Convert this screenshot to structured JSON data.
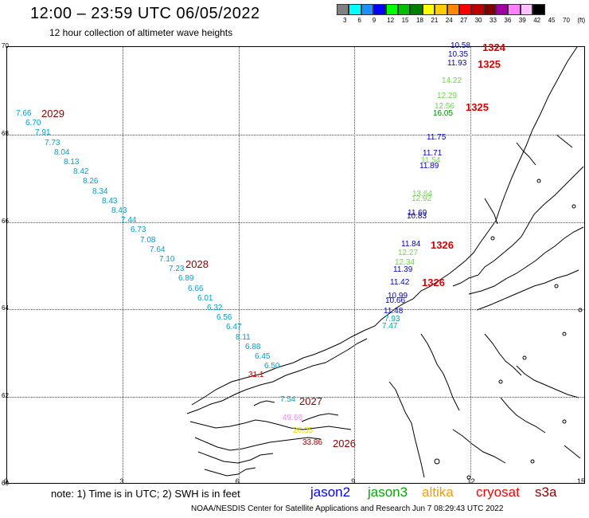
{
  "title": "12:00 – 23:59 UTC 06/05/2022",
  "subtitle": "12 hour collection of altimeter wave heights",
  "scale": {
    "labels": [
      "3",
      "6",
      "9",
      "12",
      "15",
      "18",
      "21",
      "24",
      "27",
      "30",
      "33",
      "36",
      "39",
      "42",
      "45",
      "70",
      "(ft)"
    ],
    "colors": [
      "#808080",
      "#00ffff",
      "#1e90ff",
      "#0000ff",
      "#00ff00",
      "#00c000",
      "#008000",
      "#ffff00",
      "#ffcc00",
      "#ff8800",
      "#ff0000",
      "#c00000",
      "#800000",
      "#a000a0",
      "#ff80ff",
      "#ffc0ff",
      "#000000"
    ]
  },
  "axes": {
    "lat_labels": [
      "70",
      "68",
      "66",
      "64",
      "62",
      "60"
    ],
    "lon_labels": [
      "0",
      "3",
      "6",
      "9",
      "12",
      "15"
    ]
  },
  "passes": [
    {
      "label": "1324",
      "style": "red"
    },
    {
      "label": "1325",
      "style": "red"
    },
    {
      "label": "1325",
      "style": "red"
    },
    {
      "label": "1326",
      "style": "red"
    },
    {
      "label": "1326",
      "style": "red"
    },
    {
      "label": "2029",
      "style": "dark"
    },
    {
      "label": "2028",
      "style": "dark"
    },
    {
      "label": "2027",
      "style": "dark"
    },
    {
      "label": "2026",
      "style": "dark"
    }
  ],
  "observations": {
    "track_2029": [
      "7.66",
      "6.70",
      "7.91",
      "7.73",
      "8.04",
      "8.13",
      "8.42",
      "8.26",
      "8.34",
      "8.43",
      "8.43",
      "7.44",
      "6.73",
      "7.08",
      "7.64",
      "7.10",
      "7.23",
      "6.89",
      "6.66",
      "6.01",
      "6.32",
      "6.56",
      "6.47",
      "8.11",
      "6.88",
      "6.45",
      "6.50"
    ],
    "track_north": [
      {
        "v": "10.58",
        "c": "#0000cc"
      },
      {
        "v": "10.35",
        "c": "#0000cc"
      },
      {
        "v": "11.93",
        "c": "#0000cc"
      },
      {
        "v": "14.22",
        "c": "#66dd44"
      },
      {
        "v": "12.29",
        "c": "#66dd44"
      },
      {
        "v": "12.56",
        "c": "#66dd44"
      },
      {
        "v": "16.05",
        "c": "#008800"
      },
      {
        "v": "11.75",
        "c": "#0000cc"
      },
      {
        "v": "11.71",
        "c": "#0000cc"
      },
      {
        "v": "11.54",
        "c": "#66dd44"
      },
      {
        "v": "11.89",
        "c": "#0000cc"
      },
      {
        "v": "13.64",
        "c": "#66dd44"
      },
      {
        "v": "12.92",
        "c": "#66dd44"
      },
      {
        "v": "11.69",
        "c": "#0000cc"
      },
      {
        "v": "10.83",
        "c": "#0000cc"
      },
      {
        "v": "11.84",
        "c": "#0000cc"
      },
      {
        "v": "12.27",
        "c": "#66dd44"
      },
      {
        "v": "12.34",
        "c": "#66dd44"
      },
      {
        "v": "11.39",
        "c": "#0000cc"
      },
      {
        "v": "11.42",
        "c": "#0000cc"
      },
      {
        "v": "10.99",
        "c": "#0000cc"
      },
      {
        "v": "10.66",
        "c": "#0000cc"
      },
      {
        "v": "11.48",
        "c": "#0000cc"
      },
      {
        "v": "7.93",
        "c": "#00aaaa"
      },
      {
        "v": "7.47",
        "c": "#00aaaa"
      }
    ],
    "track_south": [
      {
        "v": "31.1",
        "c": "#cc0000"
      },
      {
        "v": "7.54",
        "c": "#00aaaa"
      },
      {
        "v": "49.66",
        "c": "#ff80ff"
      },
      {
        "v": "26.35",
        "c": "#dddd00"
      },
      {
        "v": "33.86",
        "c": "#aa0000"
      }
    ]
  },
  "footnote": "note:  1) Time is in UTC;  2) SWH is in feet",
  "legend": [
    {
      "label": "jason2",
      "color": "#0000ff"
    },
    {
      "label": "jason3",
      "color": "#00aa00"
    },
    {
      "label": "altika",
      "color": "#ff9900"
    },
    {
      "label": "cryosat",
      "color": "#ff0000"
    },
    {
      "label": "s3a",
      "color": "#8b0000"
    }
  ],
  "credit": "NOAA/NESDIS Center for Satellite Applications and Research     Jun  7 08:29:43 UTC 2022"
}
